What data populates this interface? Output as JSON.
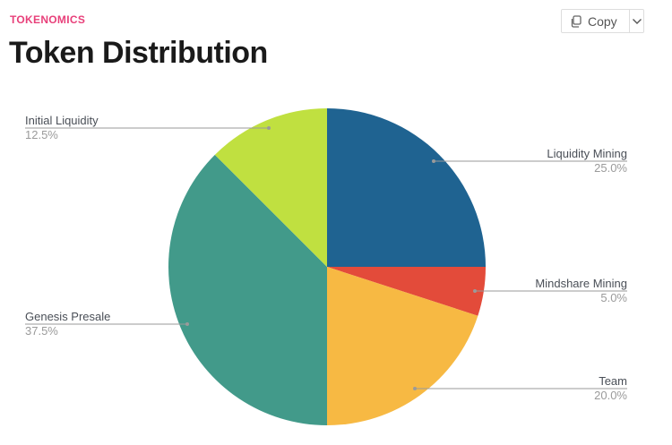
{
  "header": {
    "eyebrow": "TOKENOMICS",
    "title": "Token Distribution",
    "copy_label": "Copy"
  },
  "chart_data": {
    "type": "pie",
    "title": "Token Distribution",
    "slices": [
      {
        "label": "Liquidity Mining",
        "value": 25.0,
        "pct": "25.0%",
        "color": "#1f6391",
        "side": "right"
      },
      {
        "label": "Mindshare Mining",
        "value": 5.0,
        "pct": "5.0%",
        "color": "#e34b3a",
        "side": "right"
      },
      {
        "label": "Team",
        "value": 20.0,
        "pct": "20.0%",
        "color": "#f7b943",
        "side": "right"
      },
      {
        "label": "Genesis Presale",
        "value": 37.5,
        "pct": "37.5%",
        "color": "#429a8a",
        "side": "left"
      },
      {
        "label": "Initial Liquidity",
        "value": 12.5,
        "pct": "12.5%",
        "color": "#c0e040",
        "side": "left"
      }
    ],
    "start_angle": "12 o'clock",
    "direction": "clockwise"
  }
}
